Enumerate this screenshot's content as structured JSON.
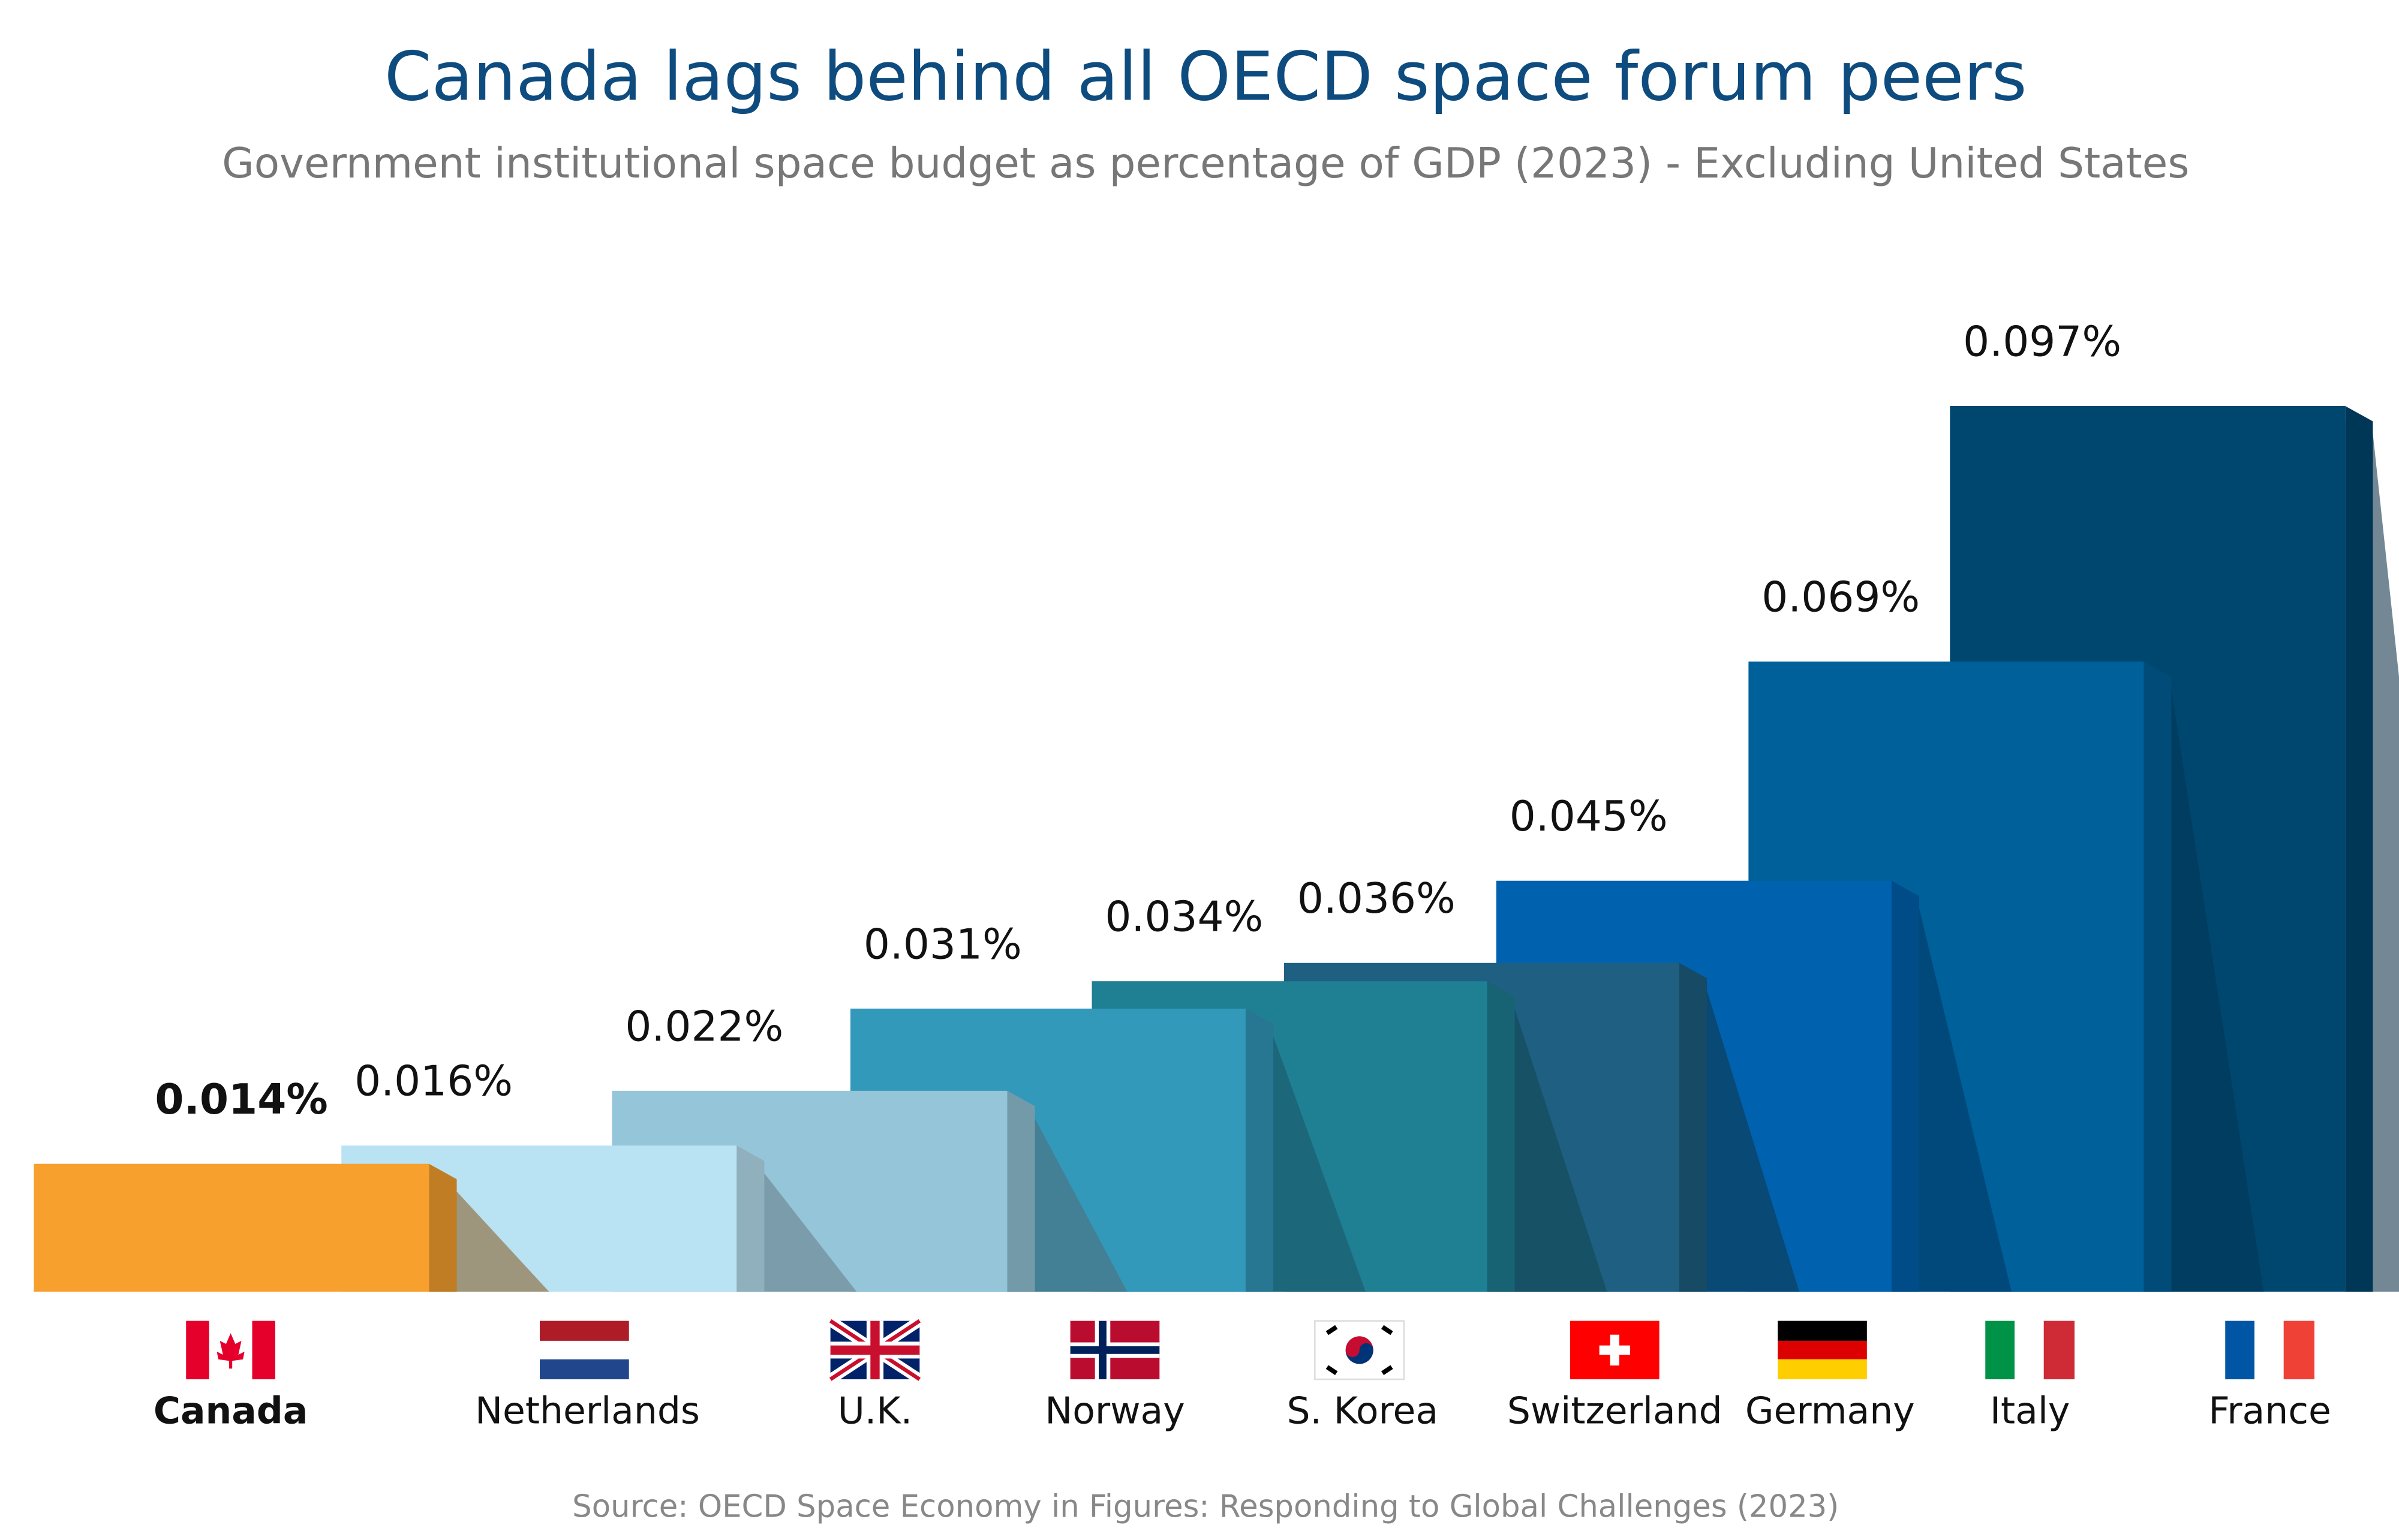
{
  "chart_data": {
    "type": "bar",
    "title": "Canada lags behind all OECD space forum peers",
    "subtitle": "Government institutional space budget as percentage of GDP (2023) - Excluding United States",
    "categories": [
      "Canada",
      "Netherlands",
      "U.K.",
      "Norway",
      "S. Korea",
      "Switzerland",
      "Germany",
      "Italy",
      "France"
    ],
    "values": [
      0.014,
      0.016,
      0.022,
      0.031,
      0.034,
      0.036,
      0.045,
      0.069,
      0.097
    ],
    "value_labels": [
      "0.014%",
      "0.016%",
      "0.022%",
      "0.031%",
      "0.034%",
      "0.036%",
      "0.045%",
      "0.069%",
      "0.097%"
    ],
    "colors": [
      "#f7a02d",
      "#b9e2f3",
      "#94c5d8",
      "#3399bb",
      "#1f7f93",
      "#1e5f82",
      "#0062ae",
      "#00609a",
      "#00476f"
    ],
    "source": "Source: OECD Space Economy in Figures: Responding to Global Challenges (2023)"
  }
}
